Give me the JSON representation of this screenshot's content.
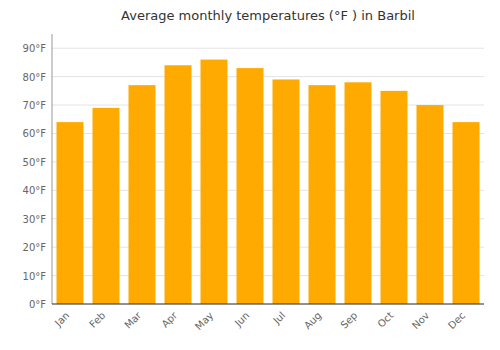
{
  "chart_data": {
    "type": "bar",
    "title": "Average monthly temperatures (°F ) in Barbil",
    "categories": [
      "Jan",
      "Feb",
      "Mar",
      "Apr",
      "May",
      "Jun",
      "Jul",
      "Aug",
      "Sep",
      "Oct",
      "Nov",
      "Dec"
    ],
    "values": [
      64,
      69,
      77,
      84,
      86,
      83,
      79,
      77,
      78,
      75,
      70,
      64
    ],
    "color": "#FFAA00",
    "ylim": [
      0,
      95
    ],
    "yticks": [
      {
        "value": 0,
        "label": "0°F"
      },
      {
        "value": 10,
        "label": "10°F"
      },
      {
        "value": 20,
        "label": "20°F"
      },
      {
        "value": 30,
        "label": "30°F"
      },
      {
        "value": 40,
        "label": "40°F"
      },
      {
        "value": 50,
        "label": "50°F"
      },
      {
        "value": 60,
        "label": "60°F"
      },
      {
        "value": 70,
        "label": "70°F"
      },
      {
        "value": 80,
        "label": "80°F"
      },
      {
        "value": 90,
        "label": "90°F"
      }
    ],
    "grid": true
  }
}
